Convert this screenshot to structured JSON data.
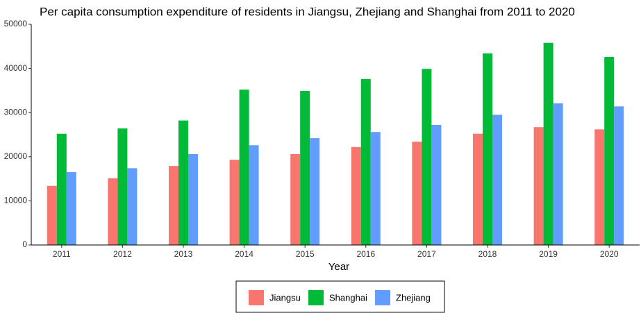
{
  "chart_data": {
    "type": "bar",
    "title": "Per capita consumption expenditure of residents in Jiangsu, Zhejiang and Shanghai from 2011 to 2020",
    "x_label": "Year",
    "categories": [
      "2011",
      "2012",
      "2013",
      "2014",
      "2015",
      "2016",
      "2017",
      "2018",
      "2019",
      "2020"
    ],
    "series": [
      {
        "name": "Jiangsu",
        "color": "#f8766d",
        "values": [
          13400,
          15100,
          17900,
          19300,
          20600,
          22200,
          23400,
          25200,
          26700,
          26200
        ]
      },
      {
        "name": "Shanghai",
        "color": "#00ba38",
        "values": [
          25200,
          26400,
          28200,
          35200,
          34900,
          37600,
          39900,
          43400,
          45800,
          42600
        ]
      },
      {
        "name": "Zhejiang",
        "color": "#619cff",
        "values": [
          16500,
          17400,
          20600,
          22600,
          24200,
          25600,
          27200,
          29500,
          32100,
          31400
        ]
      }
    ],
    "ylim": [
      0,
      50000
    ],
    "yticks": [
      0,
      10000,
      20000,
      30000,
      40000,
      50000
    ],
    "grid": false,
    "legend": "bottom"
  }
}
